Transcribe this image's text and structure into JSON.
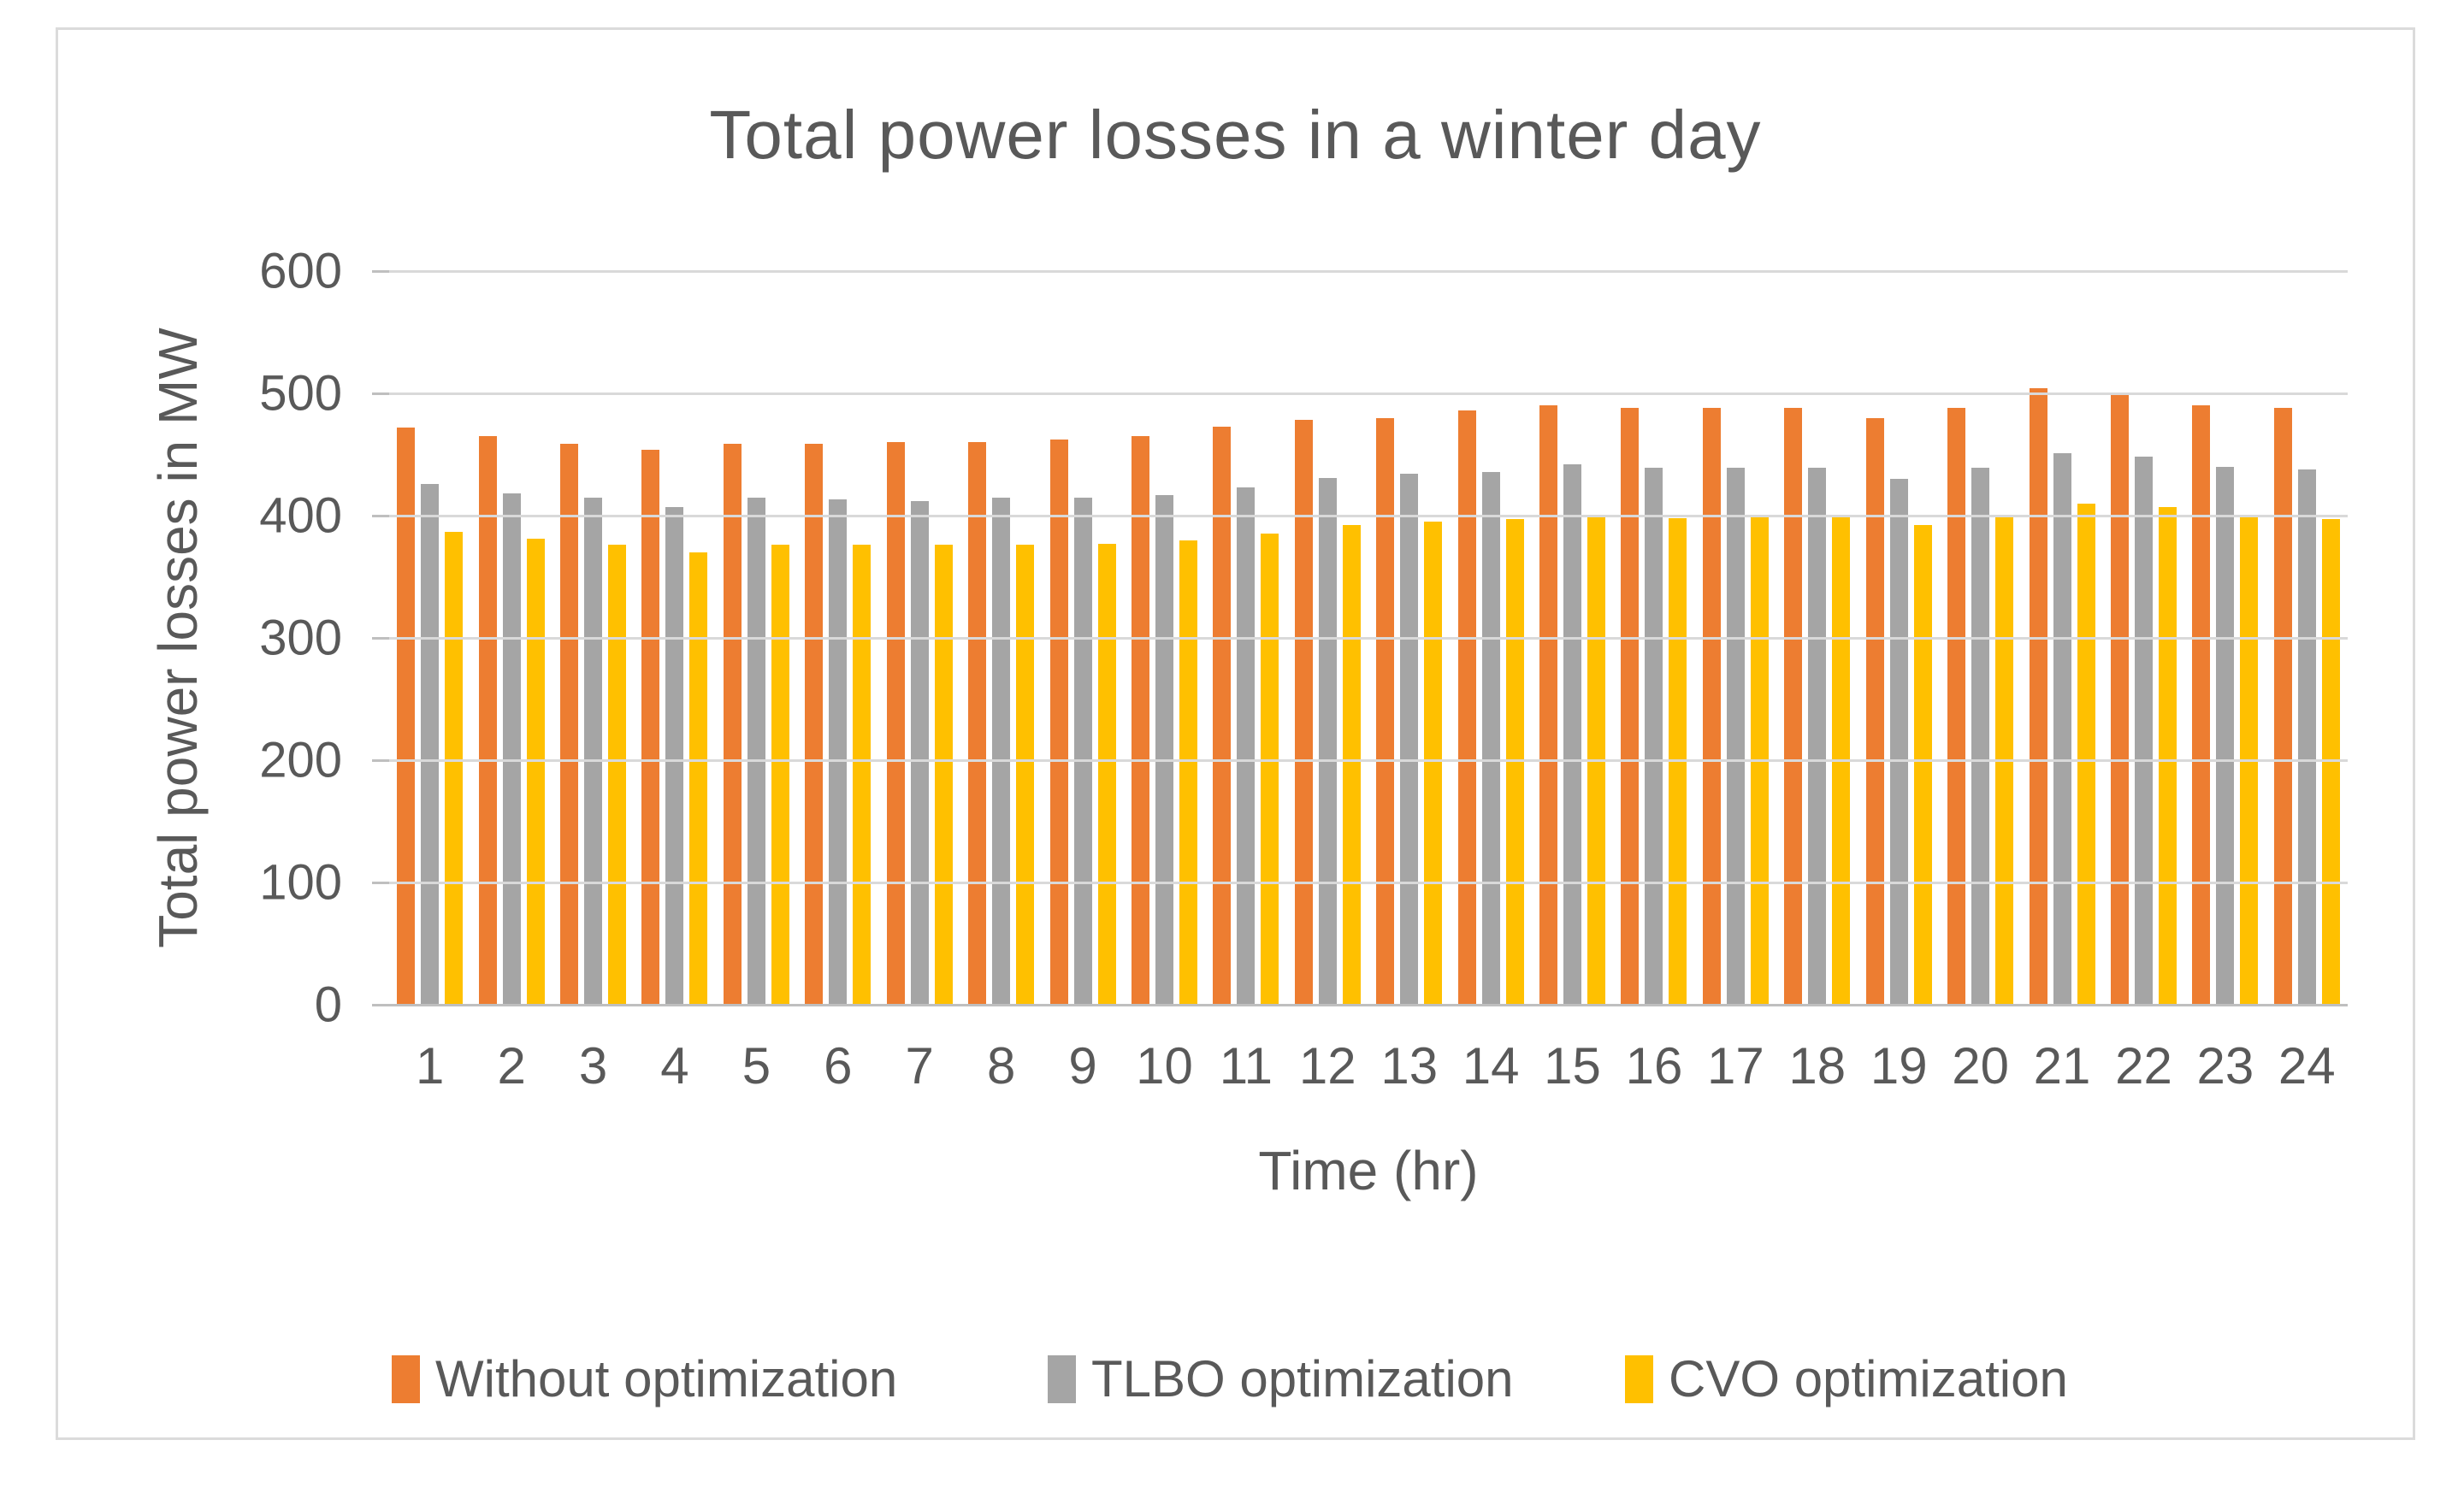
{
  "chart_data": {
    "type": "bar",
    "title": "Total power losses in a winter day",
    "xlabel": "Time (hr)",
    "ylabel": "Total power losses in MW",
    "ylim": [
      0,
      600
    ],
    "yticks": [
      0,
      100,
      200,
      300,
      400,
      500,
      600
    ],
    "grid": true,
    "legend_position": "bottom",
    "categories": [
      1,
      2,
      3,
      4,
      5,
      6,
      7,
      8,
      9,
      10,
      11,
      12,
      13,
      14,
      15,
      16,
      17,
      18,
      19,
      20,
      21,
      22,
      23,
      24
    ],
    "series": [
      {
        "name": "Without optimization",
        "color": "#ED7D31",
        "values": [
          472,
          465,
          459,
          454,
          459,
          459,
          460,
          460,
          462,
          465,
          473,
          478,
          480,
          486,
          490,
          488,
          488,
          488,
          480,
          488,
          504,
          499,
          490,
          488
        ]
      },
      {
        "name": "TLBO optimization",
        "color": "#A5A5A5",
        "values": [
          426,
          418,
          415,
          407,
          415,
          413,
          412,
          415,
          415,
          417,
          423,
          431,
          434,
          436,
          442,
          439,
          439,
          439,
          430,
          439,
          451,
          448,
          440,
          438
        ]
      },
      {
        "name": "CVO optimization",
        "color": "#FFC000",
        "values": [
          387,
          381,
          376,
          370,
          376,
          376,
          376,
          376,
          377,
          380,
          385,
          392,
          395,
          397,
          400,
          398,
          400,
          400,
          392,
          400,
          410,
          407,
          400,
          397
        ]
      }
    ]
  },
  "styles": {
    "text_color": "#595959",
    "gridline_color": "#D9D9D9",
    "axis_line_color": "#BFBFBF",
    "frame_border_color": "#DBDBDB",
    "background": "#FFFFFF"
  },
  "legend_x_positions": [
    458,
    1225,
    1900
  ]
}
